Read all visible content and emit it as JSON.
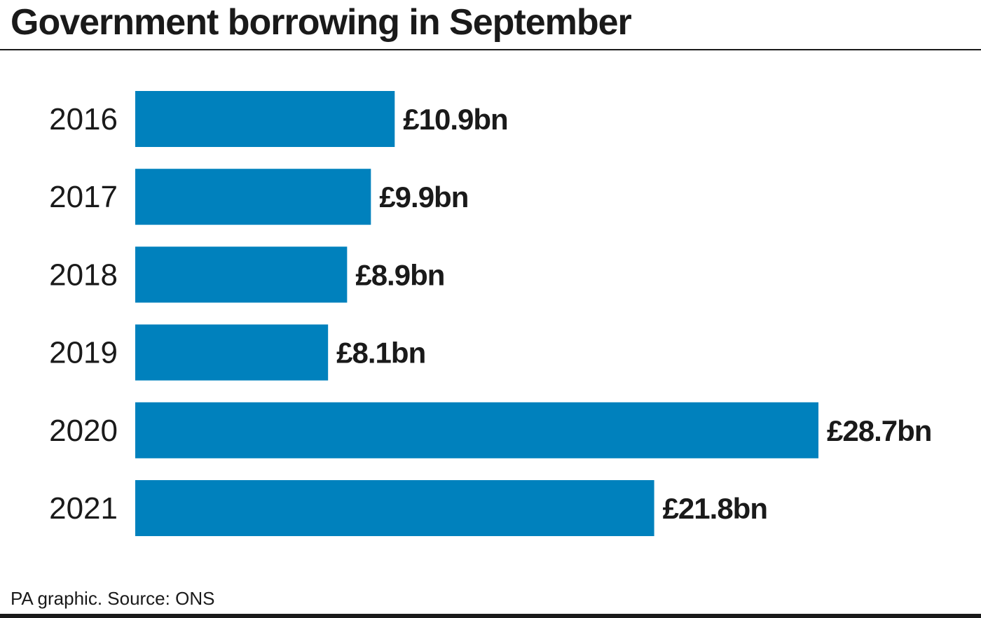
{
  "chart_data": {
    "type": "bar",
    "orientation": "horizontal",
    "title": "Government borrowing in September",
    "categories": [
      "2016",
      "2017",
      "2018",
      "2019",
      "2020",
      "2021"
    ],
    "values": [
      10.9,
      9.9,
      8.9,
      8.1,
      28.7,
      21.8
    ],
    "data_labels": [
      "£10.9bn",
      "£9.9bn",
      "£8.9bn",
      "£8.1bn",
      "£28.7bn",
      "£21.8bn"
    ],
    "unit": "£bn",
    "xlim": [
      0,
      28.7
    ],
    "grid": false,
    "bar_color": "#0081bd"
  },
  "footer": {
    "source": "PA graphic. Source: ONS"
  }
}
